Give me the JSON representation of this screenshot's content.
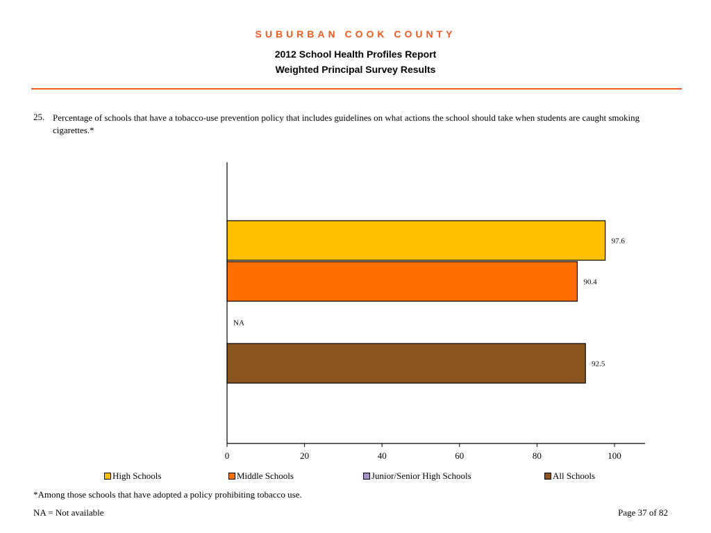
{
  "header": {
    "county": "SUBURBAN COOK COUNTY",
    "report": "2012 School Health Profiles Report",
    "survey": "Weighted Principal Survey Results"
  },
  "question": {
    "number": "25.",
    "text": "Percentage of schools that have a tobacco-use prevention policy that includes guidelines on what actions the school should take when students are caught smoking cigarettes.*"
  },
  "chart_data": {
    "type": "bar",
    "orientation": "horizontal",
    "categories": [
      "High Schools",
      "Middle Schools",
      "Junior/Senior High Schools",
      "All Schools"
    ],
    "values": [
      97.6,
      90.4,
      null,
      92.5
    ],
    "value_labels": [
      "97.6",
      "90.4",
      "NA",
      "92.5"
    ],
    "colors": [
      "#ffc000",
      "#ff6f00",
      "#a58fcf",
      "#8b5520"
    ],
    "xlim": [
      0,
      100
    ],
    "xticks": [
      0,
      20,
      40,
      60,
      80,
      100
    ],
    "grid": false,
    "legend_placement": "bottom"
  },
  "legend": {
    "items": [
      "High Schools",
      "Middle Schools",
      "Junior/Senior High Schools",
      "All Schools"
    ]
  },
  "footer": {
    "footnote": "*Among those schools that have adopted a policy prohibiting tobacco use.",
    "na_note": "NA = Not available",
    "page": "Page 37 of 82"
  }
}
